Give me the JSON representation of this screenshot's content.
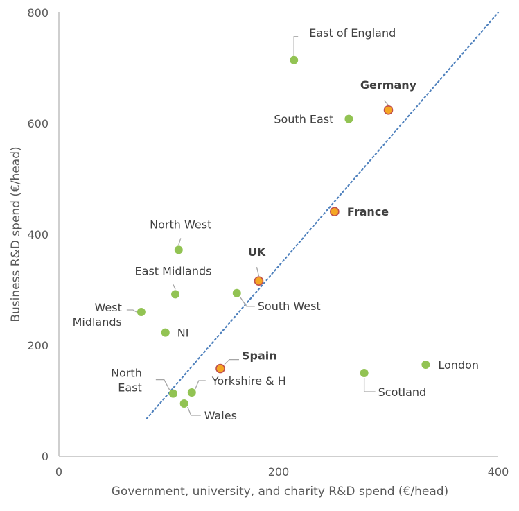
{
  "chart_data": {
    "type": "scatter",
    "title": "",
    "xlabel": "Government, university, and charity R&D spend (€/head)",
    "ylabel": "Business R&D spend (€/head)",
    "xlim": [
      0,
      400
    ],
    "ylim": [
      0,
      800
    ],
    "x_ticks": [
      "0",
      "200",
      "400"
    ],
    "y_ticks": [
      "0",
      "200",
      "400",
      "600",
      "800"
    ],
    "grid": false,
    "legend": "none",
    "colors": {
      "region": "#92c353",
      "country_fill": "#f5a623",
      "country_edge": "#c0504d",
      "trendline": "#4f81bd"
    },
    "trendline": {
      "style": "dotted",
      "x": [
        80,
        400
      ],
      "y": [
        68,
        800
      ]
    },
    "points": [
      {
        "label": "East of England",
        "x": 214,
        "y": 714,
        "group": "region"
      },
      {
        "label": "Germany",
        "x": 300,
        "y": 624,
        "group": "country"
      },
      {
        "label": "South East",
        "x": 264,
        "y": 608,
        "group": "region"
      },
      {
        "label": "France",
        "x": 251,
        "y": 441,
        "group": "country"
      },
      {
        "label": "North West",
        "x": 109,
        "y": 372,
        "group": "region"
      },
      {
        "label": "UK",
        "x": 182,
        "y": 316,
        "group": "country"
      },
      {
        "label": "East Midlands",
        "x": 106,
        "y": 292,
        "group": "region"
      },
      {
        "label": "South West",
        "x": 162,
        "y": 294,
        "group": "region"
      },
      {
        "label": "West Midlands",
        "x": 75,
        "y": 260,
        "group": "region"
      },
      {
        "label": "NI",
        "x": 97,
        "y": 223,
        "group": "region"
      },
      {
        "label": "Spain",
        "x": 147,
        "y": 158,
        "group": "country"
      },
      {
        "label": "London",
        "x": 334,
        "y": 165,
        "group": "region"
      },
      {
        "label": "Scotland",
        "x": 278,
        "y": 150,
        "group": "region"
      },
      {
        "label": "North East",
        "x": 104,
        "y": 113,
        "group": "region"
      },
      {
        "label": "Yorkshire & H",
        "x": 121,
        "y": 115,
        "group": "region"
      },
      {
        "label": "Wales",
        "x": 114,
        "y": 95,
        "group": "region"
      }
    ]
  }
}
